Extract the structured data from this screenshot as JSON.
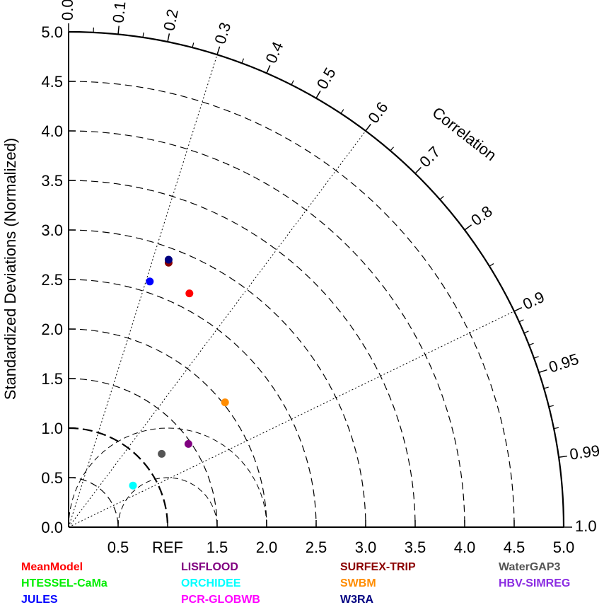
{
  "chart_data": {
    "type": "scatter",
    "subtype": "taylor-diagram",
    "title": "",
    "ylabel": "Standardized Deviations (Normalized)",
    "xlabel": "",
    "arc_label": "Correlation",
    "ref_label": "REF",
    "ref_std": 1.0,
    "std_max": 5.0,
    "std_ticks_y": [
      "0.0",
      "0.5",
      "1.0",
      "1.5",
      "2.0",
      "2.5",
      "3.0",
      "3.5",
      "4.0",
      "4.5",
      "5.0"
    ],
    "std_ticks_x": [
      "0.5",
      "REF",
      "1.5",
      "2.0",
      "2.5",
      "3.0",
      "3.5",
      "4.0",
      "4.5",
      "5.0"
    ],
    "std_tick_values_x": [
      0.5,
      1.0,
      1.5,
      2.0,
      2.5,
      3.0,
      3.5,
      4.0,
      4.5,
      5.0
    ],
    "std_tick_values_y": [
      0.0,
      0.5,
      1.0,
      1.5,
      2.0,
      2.5,
      3.0,
      3.5,
      4.0,
      4.5,
      5.0
    ],
    "dashed_std_arcs": [
      0.5,
      1.5,
      2.0,
      2.5,
      3.0,
      3.5,
      4.0,
      4.5
    ],
    "correlation_labels": [
      "0.0",
      "0.1",
      "0.2",
      "0.3",
      "0.4",
      "0.5",
      "0.6",
      "0.7",
      "0.8",
      "0.9",
      "0.95",
      "0.99",
      "1.0"
    ],
    "correlation_values": [
      0.0,
      0.1,
      0.2,
      0.3,
      0.4,
      0.5,
      0.6,
      0.7,
      0.8,
      0.9,
      0.95,
      0.99,
      1.0
    ],
    "correlation_radial_lines": [
      0.3,
      0.6,
      0.9
    ],
    "minor_correlation_ticks": [
      0.05,
      0.15,
      0.25,
      0.35,
      0.45,
      0.55,
      0.65,
      0.75,
      0.85,
      0.91,
      0.92,
      0.93,
      0.94,
      0.96,
      0.97,
      0.98
    ],
    "legend_placement": "bottom",
    "series": [
      {
        "name": "MeanModel",
        "color": "#ff0000",
        "x": 1.22,
        "y": 2.36
      },
      {
        "name": "HTESSEL-CaMa",
        "color": "#00ee00",
        "x": null,
        "y": null
      },
      {
        "name": "JULES",
        "color": "#0000ff",
        "x": 0.82,
        "y": 2.48
      },
      {
        "name": "LISFLOOD",
        "color": "#800080",
        "x": 1.21,
        "y": 0.84
      },
      {
        "name": "ORCHIDEE",
        "color": "#00ffff",
        "x": 0.65,
        "y": 0.42
      },
      {
        "name": "PCR-GLOBWB",
        "color": "#ff00ff",
        "x": null,
        "y": null
      },
      {
        "name": "SURFEX-TRIP",
        "color": "#8b0000",
        "x": 1.01,
        "y": 2.67
      },
      {
        "name": "SWBM",
        "color": "#ff8c00",
        "x": 1.58,
        "y": 1.26
      },
      {
        "name": "W3RA",
        "color": "#000080",
        "x": 1.01,
        "y": 2.7
      },
      {
        "name": "WaterGAP3",
        "color": "#555555",
        "x": 0.94,
        "y": 0.74
      },
      {
        "name": "HBV-SIMREG",
        "color": "#8a2be2",
        "x": null,
        "y": null
      }
    ]
  }
}
